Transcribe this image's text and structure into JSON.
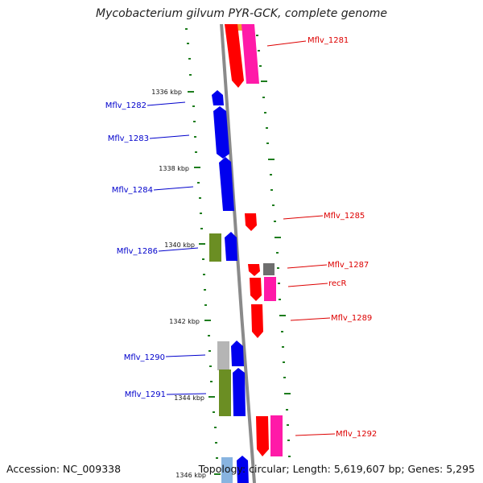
{
  "title": "Mycobacterium gilvum PYR-GCK, complete genome",
  "footer": {
    "accession": "Accession: NC_009338",
    "summary": "Topology: circular; Length: 5,619,607 bp; Genes: 5,295"
  },
  "colors": {
    "backbone": "#8a8a8a",
    "tick": "#1e7d1e",
    "forward_label": "#0000cc",
    "reverse_label": "#dd0000",
    "blue_gene": "#0000ee",
    "red_gene": "#ff0000",
    "magenta_gene": "#ff1aa8",
    "olive_gene": "#6b8e23",
    "grey_gene": "#b5b5b5",
    "darkgrey_gene": "#6e6e6e",
    "lightblue_gene": "#88b4e0",
    "orange_gene": "#f0a030"
  },
  "kbp_labels": [
    "1336 kbp",
    "1338 kbp",
    "1340 kbp",
    "1342 kbp",
    "1344 kbp",
    "1346 kbp"
  ],
  "forward_genes": [
    "Mflv_1282",
    "Mflv_1283",
    "Mflv_1284",
    "Mflv_1286",
    "Mflv_1290",
    "Mflv_1291"
  ],
  "reverse_genes": [
    "Mflv_1281",
    "Mflv_1285",
    "Mflv_1287",
    "recR",
    "Mflv_1289",
    "Mflv_1292"
  ]
}
